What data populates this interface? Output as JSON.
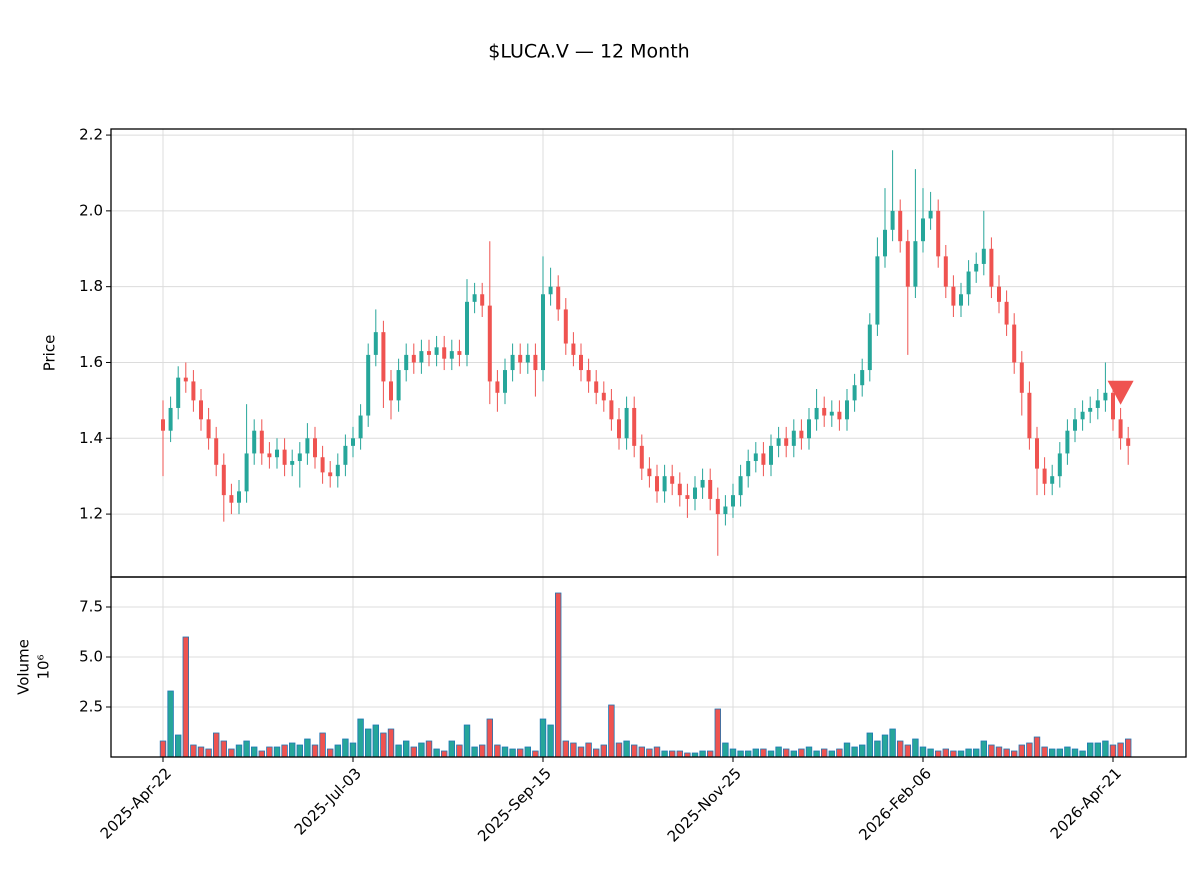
{
  "chart_data": {
    "type": "candlestick",
    "title": "$LUCA.V — 12 Month",
    "ylabel": "Price",
    "volume_ylabel": "Volume",
    "volume_scale_label": "10⁶",
    "up_color": "#26a69a",
    "down_color": "#ef5350",
    "volume_edge_color": "#1f77b4",
    "grid": true,
    "categories": [
      "2025-Apr-22",
      null,
      null,
      null,
      null,
      null,
      null,
      null,
      null,
      null,
      null,
      null,
      null,
      null,
      null,
      null,
      null,
      null,
      null,
      null,
      null,
      null,
      null,
      null,
      null,
      "2025-Jul-03",
      null,
      null,
      null,
      null,
      null,
      null,
      null,
      null,
      null,
      null,
      null,
      null,
      null,
      null,
      null,
      null,
      null,
      null,
      null,
      null,
      null,
      null,
      null,
      null,
      "2025-Sep-15",
      null,
      null,
      null,
      null,
      null,
      null,
      null,
      null,
      null,
      null,
      null,
      null,
      null,
      null,
      null,
      null,
      null,
      null,
      null,
      null,
      null,
      null,
      null,
      null,
      "2025-Nov-25",
      null,
      null,
      null,
      null,
      null,
      null,
      null,
      null,
      null,
      null,
      null,
      null,
      null,
      null,
      null,
      null,
      null,
      null,
      null,
      null,
      null,
      null,
      null,
      null,
      "2026-Feb-06",
      null,
      null,
      null,
      null,
      null,
      null,
      null,
      null,
      null,
      null,
      null,
      null,
      null,
      null,
      null,
      null,
      null,
      null,
      null,
      null,
      null,
      null,
      null,
      null,
      "2026-Apr-21",
      null,
      null
    ],
    "open": [
      1.45,
      1.42,
      1.48,
      1.56,
      1.55,
      1.5,
      1.45,
      1.4,
      1.33,
      1.25,
      1.23,
      1.26,
      1.36,
      1.42,
      1.36,
      1.35,
      1.37,
      1.33,
      1.34,
      1.36,
      1.4,
      1.35,
      1.31,
      1.3,
      1.33,
      1.38,
      1.4,
      1.46,
      1.62,
      1.68,
      1.55,
      1.5,
      1.58,
      1.62,
      1.6,
      1.63,
      1.62,
      1.64,
      1.61,
      1.63,
      1.62,
      1.76,
      1.78,
      1.75,
      1.55,
      1.52,
      1.58,
      1.62,
      1.6,
      1.62,
      1.58,
      1.78,
      1.8,
      1.74,
      1.65,
      1.62,
      1.58,
      1.55,
      1.52,
      1.5,
      1.45,
      1.4,
      1.48,
      1.38,
      1.32,
      1.3,
      1.26,
      1.3,
      1.28,
      1.25,
      1.24,
      1.27,
      1.29,
      1.24,
      1.2,
      1.22,
      1.25,
      1.3,
      1.34,
      1.36,
      1.33,
      1.38,
      1.4,
      1.38,
      1.42,
      1.4,
      1.45,
      1.48,
      1.46,
      1.47,
      1.45,
      1.5,
      1.54,
      1.58,
      1.7,
      1.88,
      1.95,
      2.0,
      1.92,
      1.8,
      1.92,
      1.98,
      2.0,
      1.88,
      1.8,
      1.75,
      1.78,
      1.84,
      1.86,
      1.9,
      1.8,
      1.76,
      1.7,
      1.6,
      1.52,
      1.4,
      1.32,
      1.28,
      1.3,
      1.36,
      1.42,
      1.45,
      1.47,
      1.48,
      1.5,
      1.52,
      1.45,
      1.4
    ],
    "high": [
      1.5,
      1.51,
      1.59,
      1.6,
      1.58,
      1.53,
      1.48,
      1.43,
      1.36,
      1.28,
      1.29,
      1.49,
      1.45,
      1.45,
      1.39,
      1.4,
      1.4,
      1.37,
      1.39,
      1.44,
      1.43,
      1.38,
      1.34,
      1.36,
      1.41,
      1.43,
      1.49,
      1.65,
      1.74,
      1.71,
      1.58,
      1.61,
      1.65,
      1.65,
      1.66,
      1.66,
      1.67,
      1.67,
      1.66,
      1.66,
      1.82,
      1.81,
      1.81,
      1.92,
      1.58,
      1.61,
      1.65,
      1.65,
      1.65,
      1.65,
      1.88,
      1.85,
      1.83,
      1.77,
      1.68,
      1.65,
      1.61,
      1.58,
      1.55,
      1.53,
      1.48,
      1.51,
      1.51,
      1.41,
      1.35,
      1.33,
      1.33,
      1.33,
      1.31,
      1.28,
      1.3,
      1.32,
      1.32,
      1.27,
      1.25,
      1.28,
      1.33,
      1.37,
      1.39,
      1.39,
      1.41,
      1.43,
      1.43,
      1.45,
      1.45,
      1.48,
      1.53,
      1.51,
      1.5,
      1.5,
      1.53,
      1.57,
      1.61,
      1.73,
      1.93,
      2.06,
      2.16,
      2.03,
      1.95,
      2.11,
      2.06,
      2.05,
      2.03,
      1.91,
      1.83,
      1.81,
      1.87,
      1.89,
      2.0,
      1.93,
      1.83,
      1.79,
      1.73,
      1.63,
      1.55,
      1.43,
      1.35,
      1.33,
      1.39,
      1.45,
      1.48,
      1.5,
      1.51,
      1.53,
      1.6,
      1.55,
      1.48,
      1.43
    ],
    "low": [
      1.3,
      1.39,
      1.45,
      1.52,
      1.47,
      1.42,
      1.37,
      1.3,
      1.18,
      1.2,
      1.2,
      1.23,
      1.33,
      1.33,
      1.32,
      1.32,
      1.3,
      1.3,
      1.27,
      1.33,
      1.32,
      1.28,
      1.27,
      1.27,
      1.3,
      1.35,
      1.37,
      1.43,
      1.59,
      1.48,
      1.45,
      1.47,
      1.55,
      1.57,
      1.57,
      1.59,
      1.59,
      1.58,
      1.58,
      1.59,
      1.59,
      1.73,
      1.72,
      1.49,
      1.47,
      1.49,
      1.55,
      1.57,
      1.57,
      1.51,
      1.55,
      1.75,
      1.71,
      1.62,
      1.59,
      1.55,
      1.52,
      1.49,
      1.47,
      1.42,
      1.37,
      1.37,
      1.35,
      1.29,
      1.27,
      1.23,
      1.23,
      1.25,
      1.22,
      1.19,
      1.21,
      1.24,
      1.21,
      1.09,
      1.17,
      1.19,
      1.22,
      1.27,
      1.31,
      1.3,
      1.3,
      1.35,
      1.35,
      1.35,
      1.37,
      1.37,
      1.42,
      1.43,
      1.43,
      1.42,
      1.42,
      1.47,
      1.51,
      1.55,
      1.67,
      1.85,
      1.92,
      1.89,
      1.62,
      1.77,
      1.89,
      1.95,
      1.85,
      1.77,
      1.72,
      1.72,
      1.75,
      1.81,
      1.83,
      1.77,
      1.73,
      1.67,
      1.57,
      1.46,
      1.37,
      1.25,
      1.25,
      1.25,
      1.27,
      1.33,
      1.39,
      1.42,
      1.44,
      1.45,
      1.47,
      1.42,
      1.37,
      1.33
    ],
    "close": [
      1.42,
      1.48,
      1.56,
      1.55,
      1.5,
      1.45,
      1.4,
      1.33,
      1.25,
      1.23,
      1.26,
      1.36,
      1.42,
      1.36,
      1.35,
      1.37,
      1.33,
      1.34,
      1.36,
      1.4,
      1.35,
      1.31,
      1.3,
      1.33,
      1.38,
      1.4,
      1.46,
      1.62,
      1.68,
      1.55,
      1.5,
      1.58,
      1.62,
      1.6,
      1.63,
      1.62,
      1.64,
      1.61,
      1.63,
      1.62,
      1.76,
      1.78,
      1.75,
      1.55,
      1.52,
      1.58,
      1.62,
      1.6,
      1.62,
      1.58,
      1.78,
      1.8,
      1.74,
      1.65,
      1.62,
      1.58,
      1.55,
      1.52,
      1.5,
      1.45,
      1.4,
      1.48,
      1.38,
      1.32,
      1.3,
      1.26,
      1.3,
      1.28,
      1.25,
      1.24,
      1.27,
      1.29,
      1.24,
      1.2,
      1.22,
      1.25,
      1.3,
      1.34,
      1.36,
      1.33,
      1.38,
      1.4,
      1.38,
      1.42,
      1.4,
      1.45,
      1.48,
      1.46,
      1.47,
      1.45,
      1.5,
      1.54,
      1.58,
      1.7,
      1.88,
      1.95,
      2.0,
      1.92,
      1.8,
      1.92,
      1.98,
      2.0,
      1.88,
      1.8,
      1.75,
      1.78,
      1.84,
      1.86,
      1.9,
      1.8,
      1.76,
      1.7,
      1.6,
      1.52,
      1.4,
      1.32,
      1.28,
      1.3,
      1.36,
      1.42,
      1.45,
      1.47,
      1.48,
      1.5,
      1.52,
      1.45,
      1.4,
      1.38
    ],
    "volume": [
      0.8,
      3.3,
      1.1,
      6.0,
      0.6,
      0.5,
      0.4,
      1.2,
      0.8,
      0.4,
      0.6,
      0.8,
      0.5,
      0.3,
      0.5,
      0.5,
      0.6,
      0.7,
      0.6,
      0.9,
      0.6,
      1.2,
      0.4,
      0.6,
      0.9,
      0.7,
      1.9,
      1.4,
      1.6,
      1.2,
      1.4,
      0.6,
      0.8,
      0.5,
      0.7,
      0.8,
      0.4,
      0.3,
      0.8,
      0.6,
      1.6,
      0.5,
      0.6,
      1.9,
      0.6,
      0.5,
      0.4,
      0.4,
      0.5,
      0.3,
      1.9,
      1.6,
      8.2,
      0.8,
      0.7,
      0.5,
      0.7,
      0.4,
      0.6,
      2.6,
      0.7,
      0.8,
      0.6,
      0.5,
      0.4,
      0.5,
      0.3,
      0.3,
      0.3,
      0.2,
      0.2,
      0.3,
      0.3,
      2.4,
      0.7,
      0.4,
      0.3,
      0.3,
      0.4,
      0.4,
      0.3,
      0.5,
      0.4,
      0.3,
      0.4,
      0.5,
      0.3,
      0.4,
      0.3,
      0.4,
      0.7,
      0.5,
      0.6,
      1.2,
      0.8,
      1.1,
      1.4,
      0.8,
      0.6,
      0.9,
      0.5,
      0.4,
      0.3,
      0.4,
      0.3,
      0.3,
      0.4,
      0.4,
      0.8,
      0.6,
      0.5,
      0.4,
      0.3,
      0.6,
      0.7,
      1.0,
      0.5,
      0.4,
      0.4,
      0.5,
      0.4,
      0.3,
      0.7,
      0.7,
      0.8,
      0.6,
      0.7,
      0.9
    ],
    "ylim": [
      1.034,
      2.216
    ],
    "yticks": [
      1.2,
      1.4,
      1.6,
      1.8,
      {
        "value": 2,
        "label": "2.0"
      },
      2.2
    ],
    "volume_ylim": [
      0,
      9
    ],
    "volume_yticks": [
      2.5,
      {
        "value": 5,
        "label": "5.0"
      },
      7.5
    ],
    "signals": [
      {
        "category_index": 126,
        "value": 1.52,
        "color": "#ef5350"
      }
    ]
  }
}
